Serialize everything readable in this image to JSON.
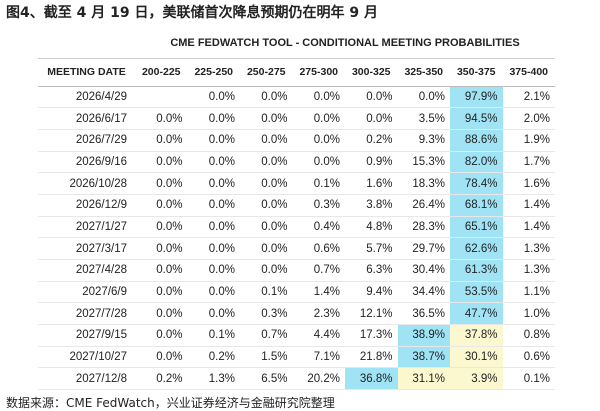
{
  "title": "图4、截至 4 月 19 日，美联储首次降息预期仍在明年 9 月",
  "table": {
    "title": "CME FEDWATCH TOOL - CONDITIONAL MEETING PROBABILITIES",
    "header": [
      "MEETING DATE",
      "200-225",
      "225-250",
      "250-275",
      "275-300",
      "300-325",
      "325-350",
      "350-375",
      "375-400"
    ],
    "rows": [
      [
        "2026/4/29",
        null,
        "0.0%",
        "0.0%",
        "0.0%",
        "0.0%",
        "0.0%",
        "97.9%",
        "2.1%"
      ],
      [
        "2026/6/17",
        "0.0%",
        "0.0%",
        "0.0%",
        "0.0%",
        "0.0%",
        "3.5%",
        "94.5%",
        "2.0%"
      ],
      [
        "2026/7/29",
        "0.0%",
        "0.0%",
        "0.0%",
        "0.0%",
        "0.2%",
        "9.3%",
        "88.6%",
        "1.9%"
      ],
      [
        "2026/9/16",
        "0.0%",
        "0.0%",
        "0.0%",
        "0.0%",
        "0.9%",
        "15.3%",
        "82.0%",
        "1.7%"
      ],
      [
        "2026/10/28",
        "0.0%",
        "0.0%",
        "0.0%",
        "0.1%",
        "1.6%",
        "18.3%",
        "78.4%",
        "1.6%"
      ],
      [
        "2026/12/9",
        "0.0%",
        "0.0%",
        "0.0%",
        "0.3%",
        "3.8%",
        "26.4%",
        "68.1%",
        "1.4%"
      ],
      [
        "2027/1/27",
        "0.0%",
        "0.0%",
        "0.0%",
        "0.4%",
        "4.8%",
        "28.3%",
        "65.1%",
        "1.4%"
      ],
      [
        "2027/3/17",
        "0.0%",
        "0.0%",
        "0.0%",
        "0.6%",
        "5.7%",
        "29.7%",
        "62.6%",
        "1.3%"
      ],
      [
        "2027/4/28",
        "0.0%",
        "0.0%",
        "0.0%",
        "0.7%",
        "6.3%",
        "30.4%",
        "61.3%",
        "1.3%"
      ],
      [
        "2027/6/9",
        "0.0%",
        "0.0%",
        "0.1%",
        "1.4%",
        "9.4%",
        "34.4%",
        "53.5%",
        "1.1%"
      ],
      [
        "2027/7/28",
        "0.0%",
        "0.0%",
        "0.3%",
        "2.3%",
        "12.1%",
        "36.5%",
        "47.7%",
        "1.0%"
      ],
      [
        "2027/9/15",
        "0.0%",
        "0.1%",
        "0.7%",
        "4.4%",
        "17.3%",
        "38.9%",
        "37.8%",
        "0.8%"
      ],
      [
        "2027/10/27",
        "0.0%",
        "0.2%",
        "1.5%",
        "7.1%",
        "21.8%",
        "38.7%",
        "30.1%",
        "0.6%"
      ],
      [
        "2027/12/8",
        "0.2%",
        "1.3%",
        "6.5%",
        "20.2%",
        "36.8%",
        "31.1%",
        "3.9%",
        "0.1%"
      ]
    ]
  },
  "source": "数据来源：CME FedWatch，兴业证券经济与金融研究院整理"
}
